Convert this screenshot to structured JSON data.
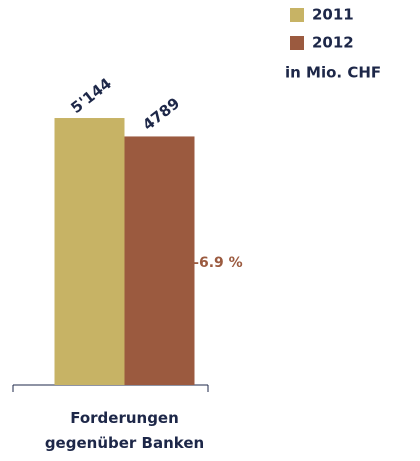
{
  "chart_data": {
    "type": "bar",
    "categories": [
      "Forderungen gegenüber Banken"
    ],
    "series": [
      {
        "name": "2011",
        "color": "#c7b365",
        "values": [
          5144
        ],
        "value_labels": [
          "5'144"
        ]
      },
      {
        "name": "2012",
        "color": "#9b5a3f",
        "values": [
          4789
        ],
        "value_labels": [
          "4789"
        ]
      }
    ],
    "unit_note": "in Mio. CHF",
    "annotation": "–6.9 %",
    "ylim": [
      0,
      6000
    ],
    "legend": "top-right"
  }
}
